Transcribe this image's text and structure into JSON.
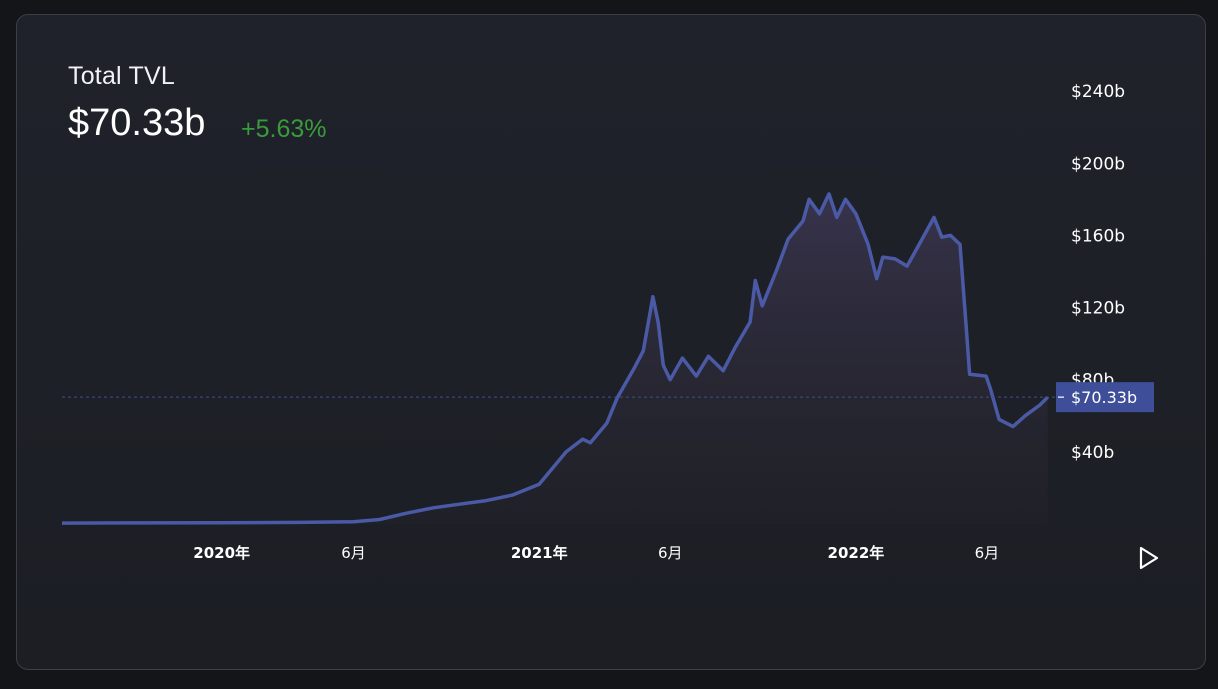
{
  "header": {
    "title": "Total TVL",
    "value": "$70.33b",
    "change": "+5.63%"
  },
  "colors": {
    "line": "#4b5aa6",
    "price_tag": "#3f4e99",
    "change_positive": "#3a9b3a"
  },
  "price_tag": {
    "label": "$70.33b",
    "value": 70.33
  },
  "chart_data": {
    "type": "area",
    "x_unit": "date",
    "y_unit": "USD billions",
    "ylim": [
      0,
      270
    ],
    "y_ticks": [
      {
        "value": 40,
        "label": "$40b"
      },
      {
        "value": 80,
        "label": "$80b"
      },
      {
        "value": 120,
        "label": "$120b"
      },
      {
        "value": 160,
        "label": "$160b"
      },
      {
        "value": 200,
        "label": "$200b"
      },
      {
        "value": 240,
        "label": "$240b"
      }
    ],
    "x_ticks": [
      {
        "date": "2020-01-01",
        "label": "2020年",
        "bold": true
      },
      {
        "date": "2020-06-01",
        "label": "6月",
        "bold": false
      },
      {
        "date": "2021-01-01",
        "label": "2021年",
        "bold": true
      },
      {
        "date": "2021-06-01",
        "label": "6月",
        "bold": false
      },
      {
        "date": "2022-01-01",
        "label": "2022年",
        "bold": true
      },
      {
        "date": "2022-06-01",
        "label": "6月",
        "bold": false
      }
    ],
    "grid": false,
    "series": [
      {
        "points": [
          [
            "2019-07-01",
            0.5
          ],
          [
            "2019-10-01",
            0.6
          ],
          [
            "2020-01-01",
            0.7
          ],
          [
            "2020-04-01",
            0.9
          ],
          [
            "2020-06-01",
            1.3
          ],
          [
            "2020-07-01",
            2.5
          ],
          [
            "2020-08-01",
            6
          ],
          [
            "2020-09-01",
            9
          ],
          [
            "2020-10-01",
            11
          ],
          [
            "2020-11-01",
            13
          ],
          [
            "2020-12-01",
            16
          ],
          [
            "2021-01-01",
            22
          ],
          [
            "2021-02-01",
            40
          ],
          [
            "2021-02-20",
            47
          ],
          [
            "2021-03-01",
            45
          ],
          [
            "2021-03-20",
            56
          ],
          [
            "2021-04-01",
            70
          ],
          [
            "2021-04-20",
            86
          ],
          [
            "2021-05-01",
            96
          ],
          [
            "2021-05-12",
            126
          ],
          [
            "2021-05-18",
            112
          ],
          [
            "2021-05-24",
            88
          ],
          [
            "2021-06-01",
            80
          ],
          [
            "2021-06-15",
            92
          ],
          [
            "2021-07-01",
            82
          ],
          [
            "2021-07-15",
            93
          ],
          [
            "2021-08-01",
            85
          ],
          [
            "2021-08-15",
            98
          ],
          [
            "2021-09-01",
            112
          ],
          [
            "2021-09-07",
            135
          ],
          [
            "2021-09-15",
            121
          ],
          [
            "2021-10-01",
            140
          ],
          [
            "2021-10-15",
            158
          ],
          [
            "2021-11-01",
            168
          ],
          [
            "2021-11-08",
            180
          ],
          [
            "2021-11-20",
            172
          ],
          [
            "2021-12-01",
            183
          ],
          [
            "2021-12-10",
            170
          ],
          [
            "2021-12-20",
            180
          ],
          [
            "2022-01-01",
            172
          ],
          [
            "2022-01-15",
            155
          ],
          [
            "2022-01-25",
            136
          ],
          [
            "2022-02-01",
            148
          ],
          [
            "2022-02-15",
            147
          ],
          [
            "2022-03-01",
            143
          ],
          [
            "2022-03-15",
            155
          ],
          [
            "2022-04-01",
            170
          ],
          [
            "2022-04-10",
            159
          ],
          [
            "2022-04-20",
            160
          ],
          [
            "2022-05-01",
            155
          ],
          [
            "2022-05-08",
            110
          ],
          [
            "2022-05-12",
            83
          ],
          [
            "2022-05-31",
            82
          ],
          [
            "2022-06-05",
            75
          ],
          [
            "2022-06-15",
            58
          ],
          [
            "2022-07-01",
            54
          ],
          [
            "2022-07-15",
            60
          ],
          [
            "2022-08-01",
            66
          ],
          [
            "2022-08-10",
            70.33
          ]
        ]
      }
    ]
  }
}
